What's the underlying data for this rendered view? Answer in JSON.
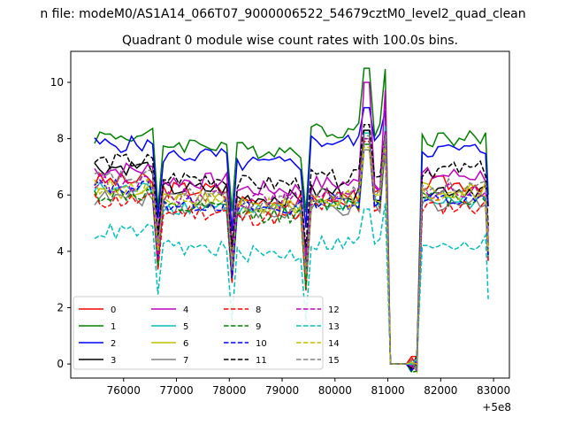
{
  "chart_data": {
    "type": "line",
    "suptitle": "n file: modeM0/AS1A14_066T07_9000006522_54679cztM0_level2_quad_clean",
    "title": "Quadrant 0 module wise count rates with 100.0s bins.",
    "xlabel": "",
    "ylabel": "",
    "x_offset_label": "+5e8",
    "xlim": [
      75000,
      83300
    ],
    "ylim": [
      -0.5,
      11.1
    ],
    "xticks": [
      76000,
      77000,
      78000,
      79000,
      80000,
      81000,
      82000,
      83000
    ],
    "xtick_labels": [
      "76000",
      "77000",
      "78000",
      "79000",
      "80000",
      "81000",
      "82000",
      "83000"
    ],
    "yticks": [
      0,
      2,
      4,
      6,
      8,
      10
    ],
    "ytick_labels": [
      "0",
      "2",
      "4",
      "6",
      "8",
      "10"
    ],
    "segments": [
      [
        75450,
        76650
      ],
      [
        76650,
        78050
      ],
      [
        78050,
        79450
      ],
      [
        79450,
        80850
      ],
      [
        80850,
        81150
      ],
      [
        81150,
        81550
      ],
      [
        81550,
        82900
      ]
    ],
    "series_shape": {
      "x_start": 75450,
      "x_step": 100,
      "dip_points": [
        76650,
        78050,
        79450
      ],
      "saa_zero_range": [
        81050,
        81350
      ],
      "end_x": 82900
    },
    "series": [
      {
        "name": "0",
        "color": "#ff0000",
        "dash": "solid",
        "segment_levels": [
          6.5,
          6.2,
          5.8,
          6.0,
          8.2,
          0,
          6.4
        ]
      },
      {
        "name": "1",
        "color": "#008000",
        "dash": "solid",
        "segment_levels": [
          8.1,
          7.8,
          7.6,
          8.3,
          10.5,
          0,
          8.0
        ]
      },
      {
        "name": "2",
        "color": "#0000ff",
        "dash": "solid",
        "segment_levels": [
          7.8,
          7.4,
          7.1,
          7.9,
          9.1,
          0,
          7.6
        ]
      },
      {
        "name": "3",
        "color": "#000000",
        "dash": "solid",
        "segment_levels": [
          7.0,
          6.2,
          5.9,
          6.1,
          8.3,
          0,
          6.2
        ]
      },
      {
        "name": "4",
        "color": "#bf00bf",
        "dash": "solid",
        "segment_levels": [
          6.9,
          6.5,
          6.2,
          6.4,
          10.0,
          0,
          6.7
        ]
      },
      {
        "name": "5",
        "color": "#00bfbf",
        "dash": "solid",
        "segment_levels": [
          6.2,
          5.6,
          5.4,
          5.7,
          8.2,
          0,
          5.8
        ]
      },
      {
        "name": "6",
        "color": "#bfbf00",
        "dash": "solid",
        "segment_levels": [
          6.1,
          5.8,
          5.6,
          5.9,
          8.0,
          0,
          6.2
        ]
      },
      {
        "name": "7",
        "color": "#808080",
        "dash": "solid",
        "segment_levels": [
          5.9,
          5.6,
          5.3,
          5.5,
          7.6,
          0,
          5.7
        ]
      },
      {
        "name": "8",
        "color": "#ff0000",
        "dash": "dashed",
        "segment_levels": [
          5.8,
          5.4,
          5.2,
          5.6,
          7.9,
          0,
          5.6
        ]
      },
      {
        "name": "9",
        "color": "#008000",
        "dash": "dashed",
        "segment_levels": [
          6.0,
          5.5,
          5.3,
          5.7,
          7.8,
          0,
          5.9
        ]
      },
      {
        "name": "10",
        "color": "#0000ff",
        "dash": "dashed",
        "segment_levels": [
          6.3,
          5.7,
          5.5,
          5.8,
          8.0,
          0,
          5.8
        ]
      },
      {
        "name": "11",
        "color": "#000000",
        "dash": "dashed",
        "segment_levels": [
          7.2,
          6.6,
          6.4,
          6.6,
          8.5,
          0,
          6.9
        ]
      },
      {
        "name": "12",
        "color": "#bf00bf",
        "dash": "dashed",
        "segment_levels": [
          6.4,
          6.0,
          5.8,
          6.0,
          8.0,
          0,
          6.1
        ]
      },
      {
        "name": "13",
        "color": "#00bfbf",
        "dash": "dashed",
        "segment_levels": [
          4.7,
          4.1,
          3.9,
          4.3,
          5.5,
          0,
          4.3
        ]
      },
      {
        "name": "14",
        "color": "#bfbf00",
        "dash": "dashed",
        "segment_levels": [
          6.3,
          5.9,
          5.6,
          5.8,
          7.7,
          0,
          6.0
        ]
      },
      {
        "name": "15",
        "color": "#808080",
        "dash": "dashed",
        "segment_levels": [
          6.6,
          6.0,
          5.7,
          6.0,
          8.1,
          0,
          6.3
        ]
      }
    ],
    "legend": {
      "placement": "lower-left",
      "columns": 4
    }
  }
}
